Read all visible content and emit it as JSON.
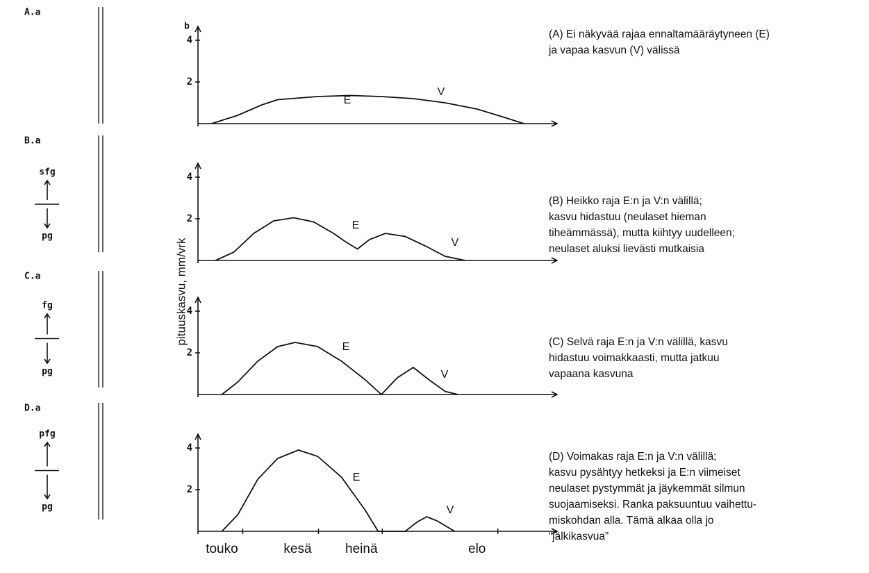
{
  "ylabel": "pituuskasvu, mm/vrk",
  "chart_data": [
    {
      "type": "line",
      "label": "b",
      "sketch_label": "A.a",
      "sketch_marks": [],
      "xlim": [
        0,
        4.4
      ],
      "ylim": [
        0,
        4.4
      ],
      "yticks": [
        2,
        4
      ],
      "x": [
        0.17,
        0.5,
        0.8,
        1.0,
        1.5,
        1.9,
        2.3,
        2.7,
        3.1,
        3.5,
        3.8,
        4.09
      ],
      "series": [
        {
          "color": "#111111",
          "values": [
            0,
            0.4,
            0.9,
            1.15,
            1.3,
            1.35,
            1.3,
            1.2,
            1.0,
            0.7,
            0.35,
            0
          ]
        }
      ],
      "annotations": [
        "E",
        "V"
      ],
      "description": [
        "(A) Ei näkyvää rajaa ennaltamääräytyneen (E)",
        "ja vapaa kasvun  (V) välissä"
      ]
    },
    {
      "type": "line",
      "sketch_label": "B.a",
      "sketch_marks": [
        "sfg",
        "pg"
      ],
      "xlim": [
        0,
        4.4
      ],
      "ylim": [
        0,
        4.4
      ],
      "yticks": [
        2,
        4
      ],
      "x": [
        0.22,
        0.45,
        0.7,
        0.95,
        1.2,
        1.45,
        1.7,
        1.85,
        2.0,
        2.15,
        2.35,
        2.6,
        2.85,
        3.1,
        3.35
      ],
      "series": [
        {
          "color": "#111111",
          "values": [
            0,
            0.4,
            1.3,
            1.9,
            2.05,
            1.85,
            1.3,
            0.9,
            0.55,
            1.0,
            1.3,
            1.15,
            0.7,
            0.2,
            0
          ]
        }
      ],
      "annotations": [
        "E",
        "V"
      ],
      "description": [
        "(B) Heikko raja E:n ja V:n välillä;",
        "kasvu hidastuu  (neulaset hieman",
        "tiheämmässä), mutta kiihtyy uudelleen;",
        "neulaset aluksi lievästi mutkaisia"
      ]
    },
    {
      "type": "line",
      "sketch_label": "C.a",
      "sketch_marks": [
        "fg",
        "pg"
      ],
      "xlim": [
        0,
        4.4
      ],
      "ylim": [
        0,
        4.4
      ],
      "yticks": [
        2,
        4
      ],
      "x": [
        0.3,
        0.5,
        0.75,
        1.0,
        1.22,
        1.5,
        1.8,
        2.1,
        2.3,
        2.5,
        2.7,
        2.9,
        3.1,
        3.26
      ],
      "series": [
        {
          "color": "#111111",
          "values": [
            0,
            0.6,
            1.6,
            2.3,
            2.5,
            2.3,
            1.6,
            0.7,
            0,
            0.8,
            1.3,
            0.7,
            0.15,
            0
          ]
        }
      ],
      "annotations": [
        "E",
        "V"
      ],
      "description": [
        "(C) Selvä raja E:n ja V:n välillä, kasvu",
        "hidastuu voimakkaasti, mutta jatkuu",
        "vapaana kasvuna"
      ]
    },
    {
      "type": "line",
      "sketch_label": "D.a",
      "sketch_marks": [
        "pfg",
        "pg"
      ],
      "xlim": [
        0,
        4.4
      ],
      "ylim": [
        0,
        4.4
      ],
      "yticks": [
        2,
        4
      ],
      "xticks": [
        {
          "value": 0.3,
          "label": "touko"
        },
        {
          "value": 1.25,
          "label": "kesä"
        },
        {
          "value": 2.05,
          "label": "heinä"
        },
        {
          "value": 3.5,
          "label": "elo"
        }
      ],
      "x": [
        0.3,
        0.5,
        0.75,
        1.0,
        1.26,
        1.5,
        1.8,
        2.1,
        2.26,
        2.6,
        2.75,
        2.87,
        3.0,
        3.22
      ],
      "series": [
        {
          "color": "#111111",
          "values": [
            0,
            0.8,
            2.5,
            3.5,
            3.9,
            3.6,
            2.6,
            1.0,
            0,
            0,
            0.45,
            0.7,
            0.5,
            0
          ]
        }
      ],
      "annotations": [
        "E",
        "V"
      ],
      "description": [
        "(D) Voimakas raja E:n ja V:n välillä;",
        "kasvu pysähtyy hetkeksi ja E:n viimeiset",
        "neulaset pystymmät ja jäykemmät silmun",
        "suojaamiseksi.  Ranka paksuuntuu vaihettu-",
        "miskohdan alla.  Tämä alkaa olla jo",
        "“jälkikasvua”"
      ]
    }
  ]
}
